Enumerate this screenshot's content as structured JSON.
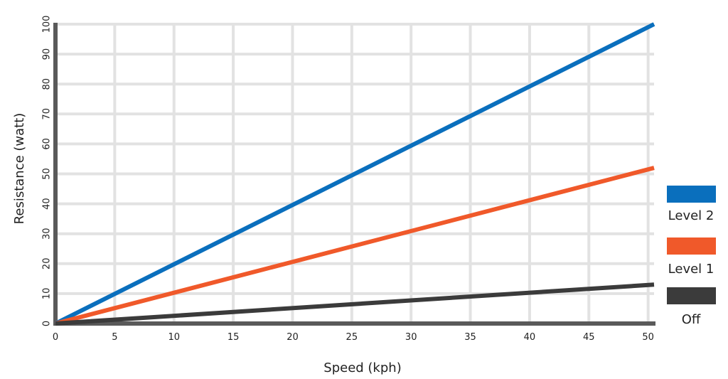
{
  "chart_data": {
    "type": "line",
    "title": "",
    "xlabel": "Speed (kph)",
    "ylabel": "Resistance (watt)",
    "xlim": [
      0,
      50.5
    ],
    "ylim": [
      0,
      100
    ],
    "x_ticks": [
      0,
      5,
      10,
      15,
      20,
      25,
      30,
      35,
      40,
      45,
      50
    ],
    "y_ticks": [
      0,
      10,
      20,
      30,
      40,
      50,
      60,
      70,
      80,
      90,
      100
    ],
    "grid": true,
    "legend_position": "right",
    "series": [
      {
        "name": "Level 2",
        "color": "#0a6fbd",
        "x": [
          0,
          50.5
        ],
        "y": [
          0,
          100
        ]
      },
      {
        "name": "Level 1",
        "color": "#f0592a",
        "x": [
          0,
          50.5
        ],
        "y": [
          0,
          52
        ]
      },
      {
        "name": "Off",
        "color": "#3b3b3b",
        "x": [
          0,
          50.5
        ],
        "y": [
          0,
          13
        ]
      }
    ]
  }
}
